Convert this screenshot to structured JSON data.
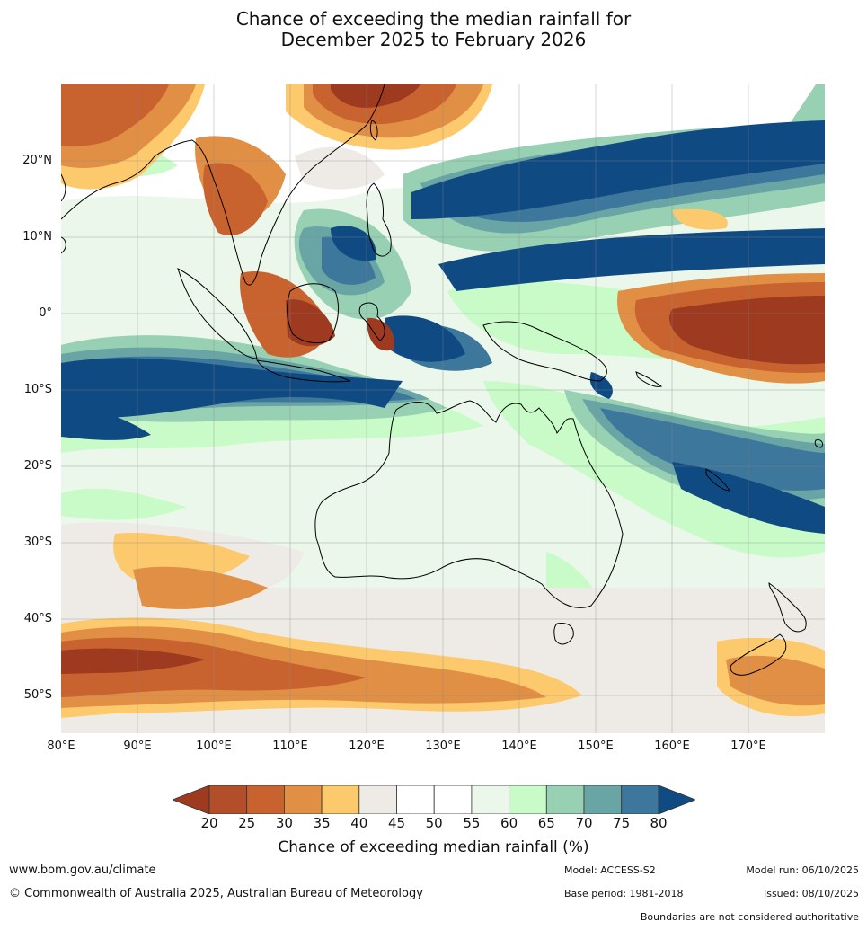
{
  "header": {
    "title_line1": "Chance of exceeding the median rainfall for",
    "title_line2": "December 2025 to February 2026"
  },
  "map": {
    "lat_labels": [
      "20°N",
      "10°N",
      "0°",
      "10°S",
      "20°S",
      "30°S",
      "40°S",
      "50°S"
    ],
    "lon_labels": [
      "80°E",
      "90°E",
      "100°E",
      "110°E",
      "120°E",
      "130°E",
      "140°E",
      "150°E",
      "160°E",
      "170°E"
    ],
    "extent": {
      "lon_min": 80,
      "lon_max": 180,
      "lat_min": -55,
      "lat_max": 30
    }
  },
  "colorbar": {
    "ticks": [
      "20",
      "25",
      "30",
      "35",
      "40",
      "45",
      "50",
      "55",
      "60",
      "65",
      "70",
      "75",
      "80"
    ],
    "colors": [
      "#9e3a1f",
      "#b24e29",
      "#c8632f",
      "#e08f44",
      "#fdc96d",
      "#eeebe6",
      "#ffffff",
      "#ffffff",
      "#eaf7ea",
      "#c8fbc8",
      "#97d0b3",
      "#6aa5a5",
      "#3e779c",
      "#104a83"
    ],
    "title": "Chance of exceeding median rainfall (%)"
  },
  "footer": {
    "website": "www.bom.gov.au/climate",
    "copyright": "© Commonwealth of Australia 2025, Australian Bureau of Meteorology",
    "model": "Model: ACCESS-S2",
    "base_period": "Base period: 1981-2018",
    "model_run": "Model run: 06/10/2025",
    "issued": "Issued: 08/10/2025",
    "disclaimer": "Boundaries are not considered authoritative"
  }
}
